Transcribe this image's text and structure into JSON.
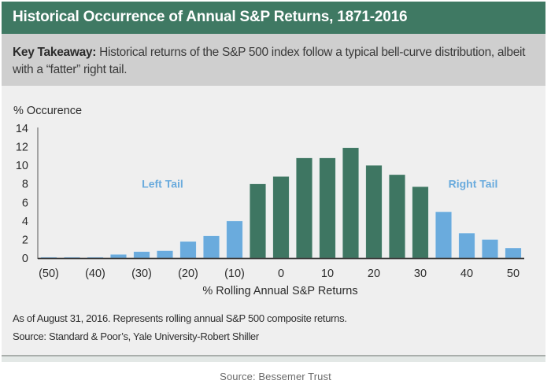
{
  "header": {
    "title": "Historical Occurrence of Annual S&P Returns, 1871-2016"
  },
  "takeaway": {
    "label": "Key Takeaway:",
    "text": " Historical returns of the S&P 500 index follow a typical bell-curve distribution, albeit with a “fatter” right tail."
  },
  "footnotes": {
    "line1": "As of August 31, 2016. Represents rolling annual S&P 500 composite returns.",
    "line2": "Source: Standard & Poor’s, Yale University-Robert Shiller"
  },
  "credit": "Source: Bessemer Trust",
  "colors": {
    "core": "#3e7662",
    "tail": "#6aabdd",
    "header": "#3f7963"
  },
  "chart_data": {
    "type": "bar",
    "title": "Historical Occurrence of Annual S&P Returns, 1871-2016",
    "xlabel": "% Rolling Annual S&P Returns",
    "ylabel": "% Occurence",
    "ylim": [
      0,
      14
    ],
    "yticks": [
      0,
      2,
      4,
      6,
      8,
      10,
      12,
      14
    ],
    "xlim": [
      -50,
      50
    ],
    "xtick_values": [
      -50,
      -40,
      -30,
      -20,
      -10,
      0,
      10,
      20,
      30,
      40,
      50
    ],
    "xtick_labels": [
      "(50)",
      "(40)",
      "(30)",
      "(20)",
      "(10)",
      "0",
      "10",
      "20",
      "30",
      "40",
      "50"
    ],
    "grid": false,
    "categories": [
      -50,
      -45,
      -40,
      -35,
      -30,
      -25,
      -20,
      -15,
      -10,
      -5,
      0,
      5,
      10,
      15,
      20,
      25,
      30,
      35,
      40,
      45,
      50
    ],
    "values": [
      0.1,
      0.1,
      0.1,
      0.4,
      0.7,
      0.8,
      1.8,
      2.4,
      4.0,
      8.0,
      8.8,
      10.8,
      10.8,
      11.9,
      10.0,
      9.0,
      7.7,
      5.0,
      2.7,
      2.0,
      1.1
    ],
    "groups": [
      "tail",
      "tail",
      "tail",
      "tail",
      "tail",
      "tail",
      "tail",
      "tail",
      "tail",
      "core",
      "core",
      "core",
      "core",
      "core",
      "core",
      "core",
      "core",
      "tail",
      "tail",
      "tail",
      "tail"
    ],
    "annotations": [
      {
        "text": "Left Tail",
        "x": -25,
        "y": 8
      },
      {
        "text": "Right Tail",
        "x": 40,
        "y": 8
      }
    ]
  }
}
